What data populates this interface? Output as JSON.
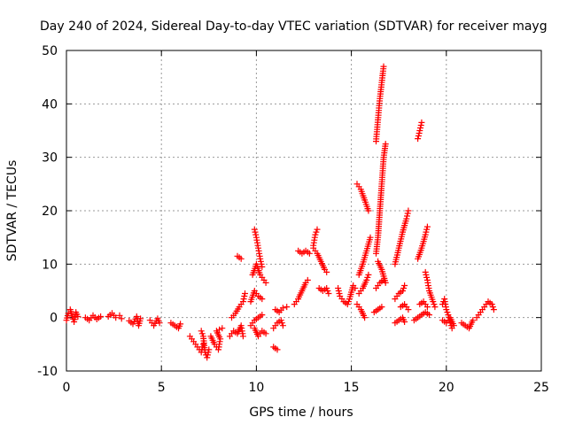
{
  "chart_data": {
    "type": "scatter",
    "title": "Day 240 of 2024, Sidereal Day-to-day VTEC variation (SDTVAR) for receiver mayg",
    "xlabel": "GPS time / hours",
    "ylabel": "SDTVAR / TECUs",
    "xlim": [
      0,
      25
    ],
    "ylim": [
      -10,
      50
    ],
    "xticks": [
      "0",
      "5",
      "10",
      "15",
      "20",
      "25"
    ],
    "yticks": [
      "-10",
      "0",
      "10",
      "20",
      "30",
      "40",
      "50"
    ],
    "grid": true,
    "marker": "plus",
    "color": "#ff0000",
    "segments": [
      [
        [
          0.0,
          -0.5
        ],
        [
          0.1,
          0.8
        ],
        [
          0.2,
          1.5
        ],
        [
          0.3,
          0.3
        ],
        [
          0.4,
          -0.8
        ],
        [
          0.5,
          1.0
        ],
        [
          0.6,
          0.2
        ]
      ],
      [
        [
          1.0,
          0.0
        ],
        [
          1.2,
          -0.5
        ],
        [
          1.4,
          0.4
        ],
        [
          1.6,
          -0.3
        ],
        [
          1.8,
          0.2
        ]
      ],
      [
        [
          2.2,
          0.2
        ],
        [
          2.4,
          0.8
        ],
        [
          2.6,
          0.0
        ],
        [
          2.8,
          0.4
        ],
        [
          2.9,
          -0.2
        ]
      ],
      [
        [
          3.3,
          -0.6
        ],
        [
          3.5,
          -1.2
        ],
        [
          3.7,
          0.2
        ],
        [
          3.8,
          -1.5
        ],
        [
          3.9,
          -0.2
        ]
      ],
      [
        [
          4.4,
          -0.5
        ],
        [
          4.6,
          -1.5
        ],
        [
          4.8,
          -0.2
        ],
        [
          4.9,
          -1.0
        ]
      ],
      [
        [
          5.5,
          -1.0
        ],
        [
          5.7,
          -1.5
        ],
        [
          5.9,
          -2.0
        ],
        [
          6.0,
          -1.2
        ]
      ],
      [
        [
          6.5,
          -3.5
        ],
        [
          6.7,
          -4.5
        ],
        [
          6.9,
          -5.5
        ],
        [
          7.1,
          -6.5
        ],
        [
          7.2,
          -5.0
        ]
      ],
      [
        [
          7.1,
          -2.5
        ],
        [
          7.2,
          -3.5
        ],
        [
          7.3,
          -6.5
        ],
        [
          7.4,
          -7.5
        ],
        [
          7.5,
          -6.0
        ]
      ],
      [
        [
          7.6,
          -3.5
        ],
        [
          7.8,
          -5.0
        ],
        [
          8.0,
          -6.0
        ],
        [
          8.1,
          -4.0
        ],
        [
          7.9,
          -2.5
        ],
        [
          8.2,
          -2.0
        ]
      ],
      [
        [
          8.6,
          -3.5
        ],
        [
          8.8,
          -2.5
        ],
        [
          9.0,
          -3.0
        ],
        [
          9.2,
          -1.5
        ],
        [
          9.3,
          -3.5
        ]
      ],
      [
        [
          8.7,
          0.0
        ],
        [
          8.9,
          0.8
        ],
        [
          9.1,
          2.0
        ],
        [
          9.3,
          3.0
        ],
        [
          9.4,
          4.5
        ]
      ],
      [
        [
          9.0,
          11.5
        ],
        [
          9.2,
          11.0
        ]
      ],
      [
        [
          9.9,
          -2.0
        ],
        [
          10.1,
          -3.5
        ],
        [
          10.3,
          -2.5
        ],
        [
          10.5,
          -3.0
        ]
      ],
      [
        [
          9.7,
          -1.5
        ],
        [
          9.9,
          -0.5
        ],
        [
          10.1,
          0.0
        ],
        [
          10.3,
          0.5
        ]
      ],
      [
        [
          9.7,
          3.0
        ],
        [
          9.9,
          5.0
        ],
        [
          10.1,
          4.0
        ],
        [
          10.3,
          3.5
        ]
      ],
      [
        [
          9.8,
          8.0
        ],
        [
          10.0,
          10.0
        ],
        [
          10.2,
          8.0
        ],
        [
          10.4,
          7.0
        ],
        [
          10.5,
          6.5
        ]
      ],
      [
        [
          9.9,
          16.5
        ],
        [
          10.0,
          15.0
        ],
        [
          10.1,
          13.0
        ],
        [
          10.2,
          11.0
        ],
        [
          10.3,
          9.5
        ]
      ],
      [
        [
          10.9,
          -5.5
        ],
        [
          11.1,
          -6.0
        ]
      ],
      [
        [
          10.9,
          -2.0
        ],
        [
          11.1,
          -1.0
        ],
        [
          11.3,
          -0.5
        ],
        [
          11.4,
          -1.5
        ]
      ],
      [
        [
          11.0,
          1.5
        ],
        [
          11.2,
          1.0
        ],
        [
          11.4,
          1.8
        ],
        [
          11.6,
          2.0
        ]
      ],
      [
        [
          12.0,
          2.5
        ],
        [
          12.2,
          3.5
        ],
        [
          12.4,
          5.0
        ],
        [
          12.6,
          6.5
        ],
        [
          12.7,
          7.0
        ]
      ],
      [
        [
          12.2,
          12.5
        ],
        [
          12.4,
          12.0
        ],
        [
          12.6,
          12.5
        ],
        [
          12.8,
          12.0
        ]
      ],
      [
        [
          13.0,
          13.5
        ],
        [
          13.1,
          15.5
        ],
        [
          13.2,
          16.5
        ]
      ],
      [
        [
          13.0,
          13.0
        ],
        [
          13.2,
          12.0
        ],
        [
          13.4,
          10.5
        ],
        [
          13.6,
          9.0
        ],
        [
          13.7,
          8.5
        ]
      ],
      [
        [
          13.3,
          5.5
        ],
        [
          13.5,
          5.0
        ],
        [
          13.7,
          5.5
        ],
        [
          13.8,
          4.5
        ]
      ],
      [
        [
          14.3,
          5.5
        ],
        [
          14.4,
          4.0
        ],
        [
          14.6,
          3.0
        ],
        [
          14.8,
          2.5
        ],
        [
          14.9,
          3.5
        ],
        [
          15.1,
          6.0
        ],
        [
          15.2,
          5.5
        ]
      ],
      [
        [
          15.3,
          2.5
        ],
        [
          15.5,
          1.5
        ],
        [
          15.7,
          0.0
        ]
      ],
      [
        [
          15.4,
          4.5
        ],
        [
          15.6,
          5.5
        ],
        [
          15.8,
          7.0
        ],
        [
          15.9,
          8.0
        ]
      ],
      [
        [
          15.4,
          8.0
        ],
        [
          15.6,
          10.0
        ],
        [
          15.8,
          12.5
        ],
        [
          16.0,
          15.0
        ]
      ],
      [
        [
          15.3,
          25.0
        ],
        [
          15.5,
          24.0
        ],
        [
          15.7,
          22.0
        ],
        [
          15.9,
          20.0
        ]
      ],
      [
        [
          16.2,
          1.0
        ],
        [
          16.4,
          1.5
        ],
        [
          16.6,
          2.0
        ]
      ],
      [
        [
          16.3,
          5.5
        ],
        [
          16.5,
          6.5
        ],
        [
          16.7,
          7.0
        ],
        [
          16.8,
          6.5
        ],
        [
          16.6,
          9.0
        ],
        [
          16.4,
          10.5
        ]
      ],
      [
        [
          16.3,
          12.0
        ],
        [
          16.4,
          15.0
        ],
        [
          16.5,
          20.0
        ],
        [
          16.6,
          25.0
        ],
        [
          16.7,
          30.0
        ],
        [
          16.8,
          32.5
        ]
      ],
      [
        [
          16.3,
          33.0
        ],
        [
          16.4,
          37.0
        ],
        [
          16.5,
          41.0
        ],
        [
          16.6,
          44.0
        ],
        [
          16.7,
          47.0
        ]
      ],
      [
        [
          17.3,
          -1.0
        ],
        [
          17.5,
          -0.5
        ],
        [
          17.7,
          0.0
        ],
        [
          17.8,
          -0.8
        ]
      ],
      [
        [
          17.3,
          3.5
        ],
        [
          17.5,
          4.5
        ],
        [
          17.7,
          5.0
        ],
        [
          17.8,
          6.0
        ]
      ],
      [
        [
          17.3,
          10.0
        ],
        [
          17.5,
          13.0
        ],
        [
          17.7,
          16.0
        ],
        [
          17.9,
          18.5
        ],
        [
          18.0,
          20.0
        ]
      ],
      [
        [
          17.6,
          2.0
        ],
        [
          17.8,
          2.5
        ],
        [
          18.0,
          1.5
        ]
      ],
      [
        [
          18.3,
          -0.5
        ],
        [
          18.5,
          0.0
        ],
        [
          18.7,
          0.5
        ],
        [
          18.9,
          1.0
        ],
        [
          19.1,
          0.5
        ]
      ],
      [
        [
          18.6,
          2.5
        ],
        [
          18.8,
          3.0
        ],
        [
          19.0,
          2.0
        ]
      ],
      [
        [
          18.5,
          11.0
        ],
        [
          18.7,
          13.0
        ],
        [
          18.9,
          15.5
        ],
        [
          19.0,
          17.0
        ]
      ],
      [
        [
          18.5,
          33.5
        ],
        [
          18.6,
          35.0
        ],
        [
          18.7,
          36.5
        ]
      ],
      [
        [
          18.9,
          8.5
        ],
        [
          19.0,
          7.0
        ],
        [
          19.1,
          5.0
        ],
        [
          19.3,
          3.0
        ],
        [
          19.4,
          2.0
        ]
      ],
      [
        [
          19.8,
          2.5
        ],
        [
          19.9,
          3.5
        ],
        [
          20.0,
          1.5
        ],
        [
          20.1,
          0.5
        ],
        [
          20.2,
          -1.0
        ],
        [
          20.3,
          -2.0
        ]
      ],
      [
        [
          19.8,
          -0.5
        ],
        [
          20.0,
          -1.0
        ],
        [
          20.2,
          0.0
        ],
        [
          20.4,
          -1.5
        ]
      ],
      [
        [
          20.8,
          -1.0
        ],
        [
          21.0,
          -1.5
        ],
        [
          21.2,
          -2.0
        ],
        [
          21.4,
          -0.5
        ]
      ],
      [
        [
          21.6,
          0.0
        ],
        [
          21.8,
          1.0
        ],
        [
          22.0,
          2.0
        ],
        [
          22.2,
          3.0
        ],
        [
          22.4,
          2.5
        ],
        [
          22.5,
          1.5
        ]
      ]
    ]
  }
}
